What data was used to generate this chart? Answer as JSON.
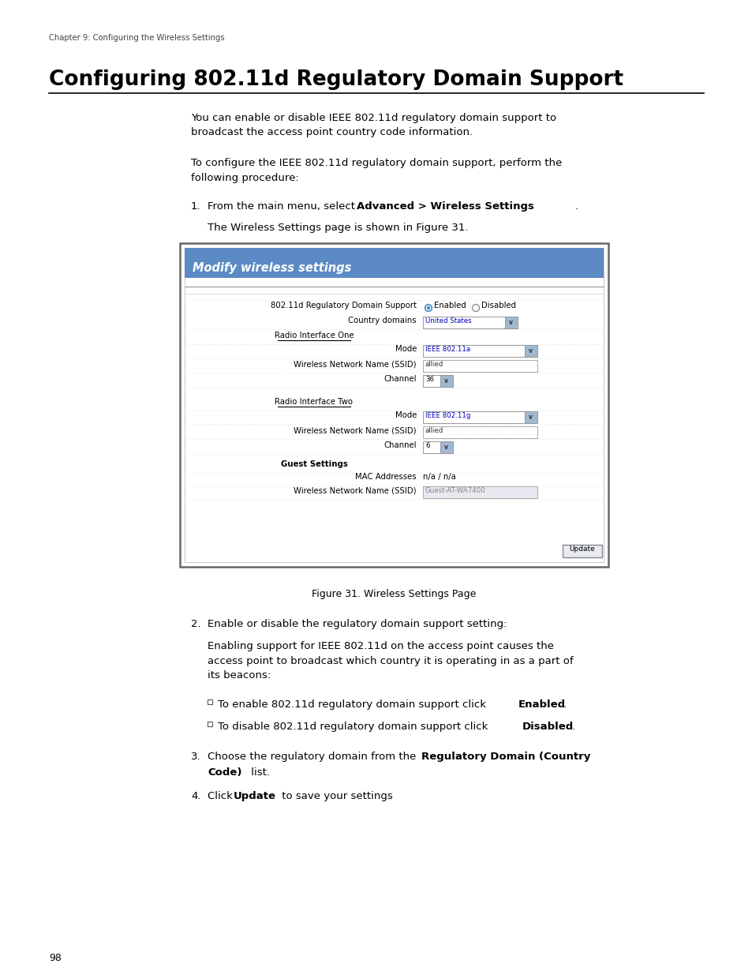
{
  "background_color": "#ffffff",
  "page_number": "98",
  "chapter_header": "Chapter 9: Configuring the Wireless Settings",
  "title": "Configuring 802.11d Regulatory Domain Support",
  "panel_header_text": "Modify wireless settings",
  "panel_header_bg": "#5b8ac5",
  "figure_caption": "Figure 31. Wireless Settings Page"
}
